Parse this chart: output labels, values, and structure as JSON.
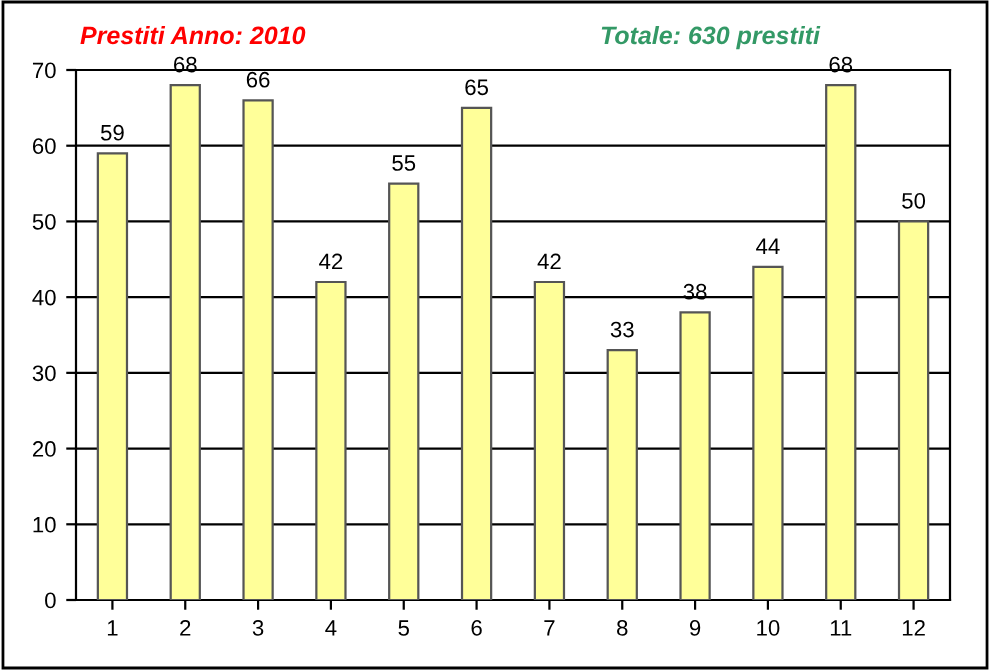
{
  "chart_data": {
    "type": "bar",
    "title": "Prestiti Anno: 2010",
    "annotations": [
      "Totale: 630 prestiti"
    ],
    "categories": [
      "1",
      "2",
      "3",
      "4",
      "5",
      "6",
      "7",
      "8",
      "9",
      "10",
      "11",
      "12"
    ],
    "values": [
      59,
      68,
      66,
      42,
      55,
      65,
      42,
      33,
      38,
      44,
      68,
      50
    ],
    "color": "#ffff99",
    "ylim": [
      0,
      70
    ],
    "yticks": [
      0,
      10,
      20,
      30,
      40,
      50,
      60,
      70
    ],
    "grid": "y",
    "data_labels": true
  }
}
